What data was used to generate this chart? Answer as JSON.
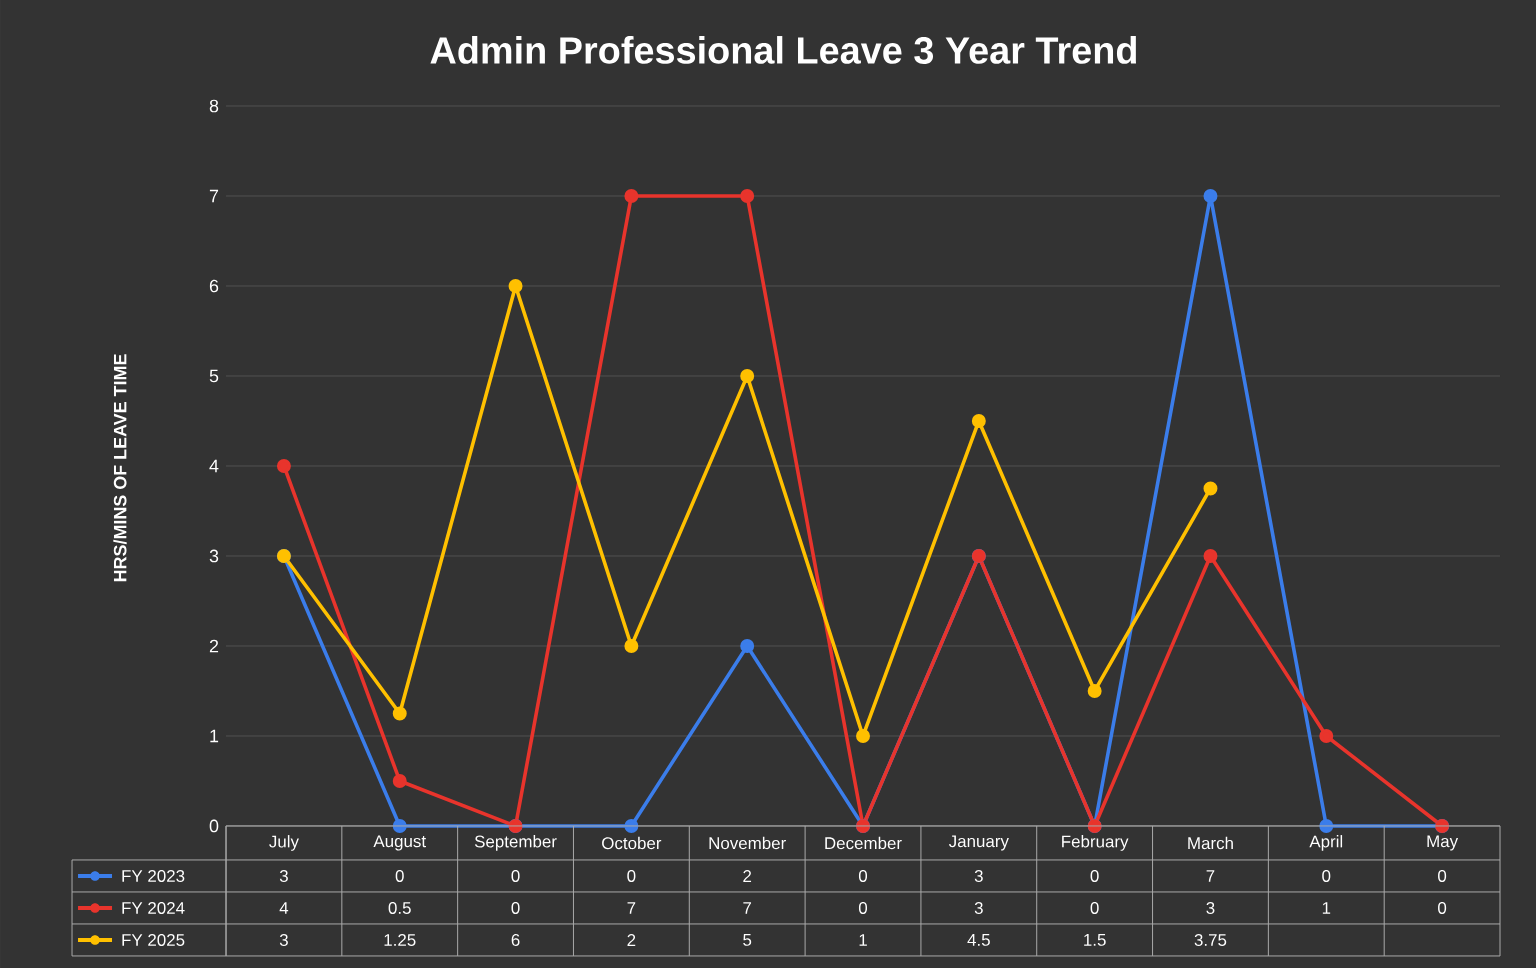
{
  "chart_data": {
    "type": "line",
    "title": "Admin Professional Leave 3 Year Trend",
    "ylabel": "HRS/MINS OF LEAVE TIME",
    "categories": [
      "July",
      "August",
      "September",
      "October",
      "November",
      "December",
      "January",
      "February",
      "March",
      "April",
      "May"
    ],
    "series": [
      {
        "name": "FY 2023",
        "color": "#3b7dea",
        "values": [
          3,
          0,
          0,
          0,
          2,
          0,
          3,
          0,
          7,
          0,
          0
        ]
      },
      {
        "name": "FY 2024",
        "color": "#e8342c",
        "values": [
          4,
          0.5,
          0,
          7,
          7,
          0,
          3,
          0,
          3,
          1,
          0
        ]
      },
      {
        "name": "FY 2025",
        "color": "#ffc000",
        "values": [
          3,
          1.25,
          6,
          2,
          5,
          1,
          4.5,
          1.5,
          3.75,
          null,
          null
        ]
      }
    ],
    "ylim": [
      0,
      8
    ],
    "yticks": [
      0,
      1,
      2,
      3,
      4,
      5,
      6,
      7,
      8
    ],
    "grid": "y",
    "marker": "circle",
    "line_style": "solid",
    "legend": "bottom",
    "data_labels": true
  }
}
